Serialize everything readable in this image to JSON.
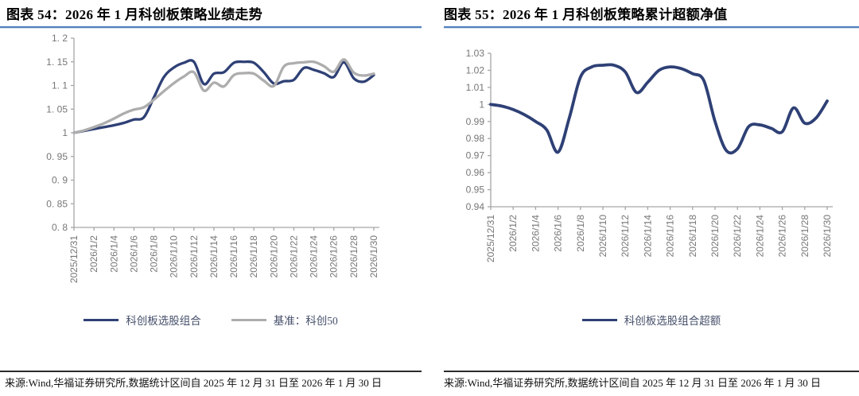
{
  "figures": [
    {
      "title": "图表 54：2026 年 1 月科创板策略业绩走势",
      "source": "来源:Wind,华福证券研究所,数据统计区间自 2025 年 12 月 31 日至 2026 年 1 月 30 日"
    },
    {
      "title": "图表 55：2026 年 1 月科创板策略累计超额净值",
      "source": "来源:Wind,华福证券研究所,数据统计区间自 2025 年 12 月 31 日至 2026 年 1 月 30 日"
    }
  ],
  "chart_data": [
    {
      "type": "line",
      "title": "2026 年 1 月科创板策略业绩走势",
      "x": [
        "2025/12/31",
        "2026/1/1",
        "2026/1/2",
        "2026/1/3",
        "2026/1/4",
        "2026/1/5",
        "2026/1/6",
        "2026/1/7",
        "2026/1/8",
        "2026/1/9",
        "2026/1/10",
        "2026/1/11",
        "2026/1/12",
        "2026/1/13",
        "2026/1/14",
        "2026/1/15",
        "2026/1/16",
        "2026/1/17",
        "2026/1/18",
        "2026/1/19",
        "2026/1/20",
        "2026/1/21",
        "2026/1/22",
        "2026/1/23",
        "2026/1/24",
        "2026/1/25",
        "2026/1/26",
        "2026/1/27",
        "2026/1/28",
        "2026/1/29",
        "2026/1/30"
      ],
      "xtick_every": 2,
      "ylim": [
        0.8,
        1.2
      ],
      "yticks": [
        {
          "v": 1.2,
          "label": "1. 2"
        },
        {
          "v": 1.15,
          "label": "1. 15"
        },
        {
          "v": 1.1,
          "label": "1. 1"
        },
        {
          "v": 1.05,
          "label": "1. 05"
        },
        {
          "v": 1,
          "label": "1"
        },
        {
          "v": 0.95,
          "label": "0. 95"
        },
        {
          "v": 0.9,
          "label": "0. 9"
        },
        {
          "v": 0.85,
          "label": "0. 85"
        },
        {
          "v": 0.8,
          "label": "0. 8"
        }
      ],
      "grid": false,
      "legend_position": "bottom",
      "series": [
        {
          "name": "科创板选股组合",
          "color": "#2e4075",
          "width": 3.3,
          "values": [
            1.0,
            1.004,
            1.008,
            1.012,
            1.016,
            1.021,
            1.028,
            1.033,
            1.075,
            1.118,
            1.138,
            1.148,
            1.15,
            1.103,
            1.125,
            1.128,
            1.148,
            1.15,
            1.148,
            1.128,
            1.104,
            1.109,
            1.112,
            1.137,
            1.133,
            1.126,
            1.118,
            1.149,
            1.115,
            1.108,
            1.122
          ]
        },
        {
          "name": "基准：科创50",
          "color": "#adadad",
          "width": 3.3,
          "values": [
            1.0,
            1.005,
            1.012,
            1.02,
            1.03,
            1.041,
            1.049,
            1.054,
            1.07,
            1.088,
            1.105,
            1.119,
            1.128,
            1.089,
            1.106,
            1.098,
            1.122,
            1.126,
            1.125,
            1.11,
            1.099,
            1.14,
            1.147,
            1.149,
            1.15,
            1.141,
            1.129,
            1.155,
            1.127,
            1.121,
            1.125
          ]
        }
      ]
    },
    {
      "type": "line",
      "title": "2026 年 1 月科创板策略累计超额净值",
      "x": [
        "2025/12/31",
        "2026/1/1",
        "2026/1/2",
        "2026/1/3",
        "2026/1/4",
        "2026/1/5",
        "2026/1/6",
        "2026/1/7",
        "2026/1/8",
        "2026/1/9",
        "2026/1/10",
        "2026/1/11",
        "2026/1/12",
        "2026/1/13",
        "2026/1/14",
        "2026/1/15",
        "2026/1/16",
        "2026/1/17",
        "2026/1/18",
        "2026/1/19",
        "2026/1/20",
        "2026/1/21",
        "2026/1/22",
        "2026/1/23",
        "2026/1/24",
        "2026/1/25",
        "2026/1/26",
        "2026/1/27",
        "2026/1/28",
        "2026/1/29",
        "2026/1/30"
      ],
      "xtick_every": 2,
      "ylim": [
        0.94,
        1.03
      ],
      "yticks": [
        {
          "v": 1.03,
          "label": "1.03"
        },
        {
          "v": 1.02,
          "label": "1.02"
        },
        {
          "v": 1.01,
          "label": "1.01"
        },
        {
          "v": 1,
          "label": "1"
        },
        {
          "v": 0.99,
          "label": "0.99"
        },
        {
          "v": 0.98,
          "label": "0.98"
        },
        {
          "v": 0.97,
          "label": "0.97"
        },
        {
          "v": 0.96,
          "label": "0.96"
        },
        {
          "v": 0.95,
          "label": "0.95"
        },
        {
          "v": 0.94,
          "label": "0.94"
        }
      ],
      "grid": false,
      "legend_position": "bottom",
      "series": [
        {
          "name": "科创板选股组合超额",
          "color": "#2e4075",
          "width": 3.8,
          "values": [
            1.0,
            0.999,
            0.997,
            0.994,
            0.99,
            0.985,
            0.972,
            0.992,
            1.016,
            1.022,
            1.023,
            1.023,
            1.019,
            1.007,
            1.013,
            1.02,
            1.022,
            1.021,
            1.018,
            1.014,
            0.99,
            0.973,
            0.974,
            0.987,
            0.988,
            0.986,
            0.984,
            0.998,
            0.989,
            0.992,
            1.002
          ]
        }
      ]
    }
  ],
  "style": {
    "accent_rule": "#4f81bd",
    "axis_color": "#a6a6a6",
    "tick_text": "#767676",
    "series_navy": "#2e4075",
    "series_gray": "#adadad"
  }
}
